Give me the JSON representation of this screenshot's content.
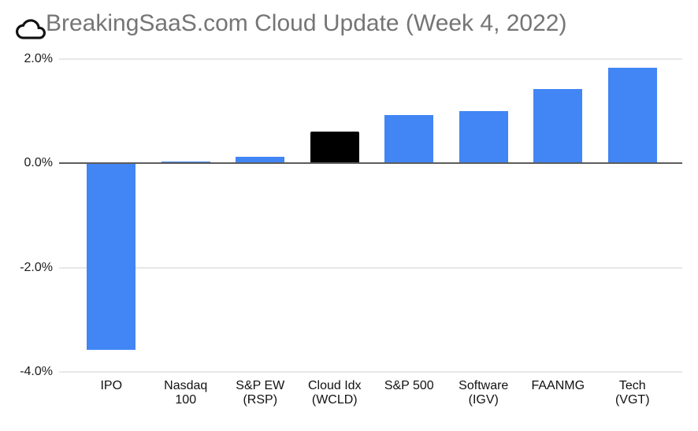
{
  "header": {
    "icon": "cloud-icon",
    "title": "BreakingSaaS.com Cloud Update (Week 4, 2022)"
  },
  "colors": {
    "bar_blue": "#4285F4",
    "bar_black": "#000000",
    "gridline": "#E7E7E7",
    "zero_line": "#5C5C5C",
    "title_text": "#757575",
    "axis_text": "#1C1C1C",
    "background": "#FFFFFF"
  },
  "chart_data": {
    "type": "bar",
    "title": "BreakingSaaS.com Cloud Update (Week 4, 2022)",
    "categories": [
      "IPO",
      "Nasdaq 100",
      "S&P EW (RSP)",
      "Cloud Idx (WCLD)",
      "S&P 500",
      "Software (IGV)",
      "FAANMG",
      "Tech (VGT)"
    ],
    "category_label_lines": [
      [
        "IPO"
      ],
      [
        "Nasdaq",
        "100"
      ],
      [
        "S&P EW",
        "(RSP)"
      ],
      [
        "Cloud Idx",
        "(WCLD)"
      ],
      [
        "S&P 500"
      ],
      [
        "Software",
        "(IGV)"
      ],
      [
        "FAANMG"
      ],
      [
        "Tech",
        "(VGT)"
      ]
    ],
    "values": [
      -3.58,
      0.04,
      0.12,
      0.61,
      0.92,
      1.0,
      1.43,
      1.84
    ],
    "unit": "%",
    "bar_colors": [
      "#4285F4",
      "#4285F4",
      "#4285F4",
      "#000000",
      "#4285F4",
      "#4285F4",
      "#4285F4",
      "#4285F4"
    ],
    "highlighted_category": "Cloud Idx (WCLD)",
    "xlabel": "",
    "ylabel": "",
    "y_ticks": [
      "2.0%",
      "0.0%",
      "-2.0%",
      "-4.0%"
    ],
    "y_tick_values": [
      2,
      0,
      -2,
      -4
    ],
    "ylim": [
      -4,
      2
    ],
    "grid": true,
    "legend": "none"
  }
}
